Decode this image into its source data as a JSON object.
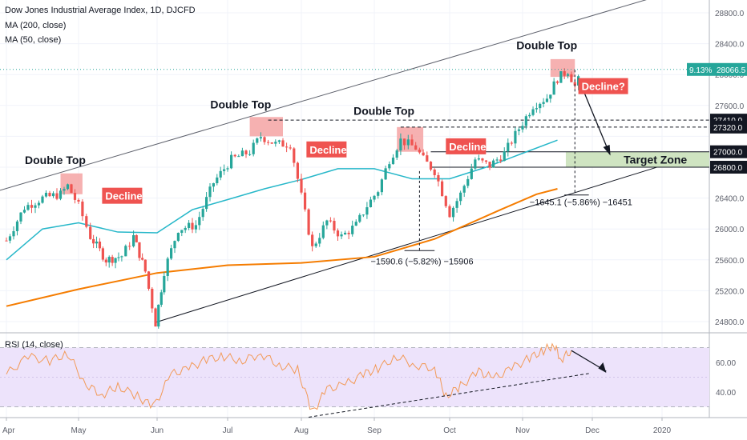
{
  "header": {
    "title": "Dow Jones Industrial Average Index, 1D, DJCFD",
    "ma200": "MA (200, close)",
    "ma50": "MA (50, close)",
    "rsi": "RSI (14, close)"
  },
  "colors": {
    "candle_up": "#26a69a",
    "candle_down": "#ef5350",
    "ma50": "#26b7c9",
    "ma200": "#f57c00",
    "rsi_line": "#f29a58",
    "rsi_band": "#ede3fb",
    "badge": "#ef5350",
    "target_zone": "#cfe4c1",
    "top_zone": "#f4a3a3"
  },
  "chart_data": [
    {
      "type": "candlestick",
      "title": "Dow Jones Industrial Average Index, 1D, DJCFD",
      "x_tick_labels": [
        "Apr",
        "May",
        "Jun",
        "Jul",
        "Aug",
        "Sep",
        "Oct",
        "Nov",
        "Dec",
        "2020"
      ],
      "y_tick_labels": [
        "24800.0",
        "25200.0",
        "25600.0",
        "26000.0",
        "26400.0",
        "27600.0",
        "28000.0",
        "28400.0",
        "28800.0"
      ],
      "ylim": [
        24600,
        29000
      ],
      "series": [
        {
          "name": "MA (200, close)",
          "x_months": [
            0,
            1,
            2,
            3,
            4,
            5,
            5.8,
            6.7,
            7.2,
            7.5
          ],
          "values": [
            25000,
            25220,
            25430,
            25530,
            25560,
            25640,
            25870,
            26250,
            26450,
            26520
          ]
        },
        {
          "name": "MA (50, close)",
          "x_months": [
            0,
            0.5,
            1,
            1.5,
            2,
            2.5,
            3,
            3.5,
            4,
            4.5,
            5,
            5.5,
            6,
            6.5,
            7,
            7.5
          ],
          "values": [
            25600,
            26000,
            26080,
            25960,
            25950,
            26250,
            26380,
            26520,
            26640,
            26780,
            26780,
            26650,
            26650,
            26800,
            26980,
            27150
          ]
        }
      ],
      "price_points": [
        {
          "x": 0.0,
          "y": 25850
        },
        {
          "x": 0.25,
          "y": 26280
        },
        {
          "x": 0.5,
          "y": 26400
        },
        {
          "x": 0.75,
          "y": 26450
        },
        {
          "x": 0.85,
          "y": 26560
        },
        {
          "x": 1.0,
          "y": 26300
        },
        {
          "x": 1.15,
          "y": 25900
        },
        {
          "x": 1.35,
          "y": 25600
        },
        {
          "x": 1.55,
          "y": 25650
        },
        {
          "x": 1.7,
          "y": 25900
        },
        {
          "x": 1.85,
          "y": 25450
        },
        {
          "x": 1.98,
          "y": 24780
        },
        {
          "x": 2.1,
          "y": 25450
        },
        {
          "x": 2.3,
          "y": 26000
        },
        {
          "x": 2.55,
          "y": 26050
        },
        {
          "x": 2.8,
          "y": 26600
        },
        {
          "x": 3.05,
          "y": 26900
        },
        {
          "x": 3.3,
          "y": 27000
        },
        {
          "x": 3.45,
          "y": 27200
        },
        {
          "x": 3.65,
          "y": 27100
        },
        {
          "x": 3.85,
          "y": 27100
        },
        {
          "x": 4.05,
          "y": 26200
        },
        {
          "x": 4.15,
          "y": 25750
        },
        {
          "x": 4.35,
          "y": 26100
        },
        {
          "x": 4.55,
          "y": 25900
        },
        {
          "x": 4.75,
          "y": 26050
        },
        {
          "x": 4.9,
          "y": 26300
        },
        {
          "x": 5.05,
          "y": 26500
        },
        {
          "x": 5.2,
          "y": 26900
        },
        {
          "x": 5.35,
          "y": 27150
        },
        {
          "x": 5.55,
          "y": 27050
        },
        {
          "x": 5.65,
          "y": 26900
        },
        {
          "x": 5.8,
          "y": 26750
        },
        {
          "x": 6.0,
          "y": 26200
        },
        {
          "x": 6.15,
          "y": 26450
        },
        {
          "x": 6.35,
          "y": 26900
        },
        {
          "x": 6.55,
          "y": 26820
        },
        {
          "x": 6.75,
          "y": 26980
        },
        {
          "x": 6.95,
          "y": 27300
        },
        {
          "x": 7.15,
          "y": 27600
        },
        {
          "x": 7.35,
          "y": 27700
        },
        {
          "x": 7.5,
          "y": 27950
        },
        {
          "x": 7.65,
          "y": 28050
        },
        {
          "x": 7.75,
          "y": 27850
        },
        {
          "x": 7.85,
          "y": 28000
        }
      ],
      "annotations": {
        "double_top": "Double Top",
        "decline": "Decline",
        "decline_q": "Decline?",
        "target_zone": "Target Zone",
        "measure_left": "−1590.6 (−5.82%) −15906",
        "measure_right": "−1645.1 (−5.86%) −16451"
      },
      "price_tags": {
        "current_pct": "9.13%",
        "current": "28066.5",
        "level_27410": "27410.0",
        "level_27320": "27320.0",
        "level_27000": "27000.0",
        "level_26800": "26800.0"
      },
      "levels": [
        27410,
        27320,
        27000,
        26800
      ],
      "target_zone": [
        26800,
        27000
      ],
      "double_top_zones": [
        {
          "x_months": [
            0.75,
            1.05
          ],
          "y": [
            26450,
            26720
          ]
        },
        {
          "x_months": [
            3.3,
            3.75
          ],
          "y": [
            27200,
            27450
          ]
        },
        {
          "x_months": [
            5.3,
            5.65
          ],
          "y": [
            27000,
            27320
          ]
        },
        {
          "x_months": [
            7.4,
            7.75
          ],
          "y": [
            27970,
            28200
          ]
        }
      ]
    },
    {
      "type": "line",
      "title": "RSI (14, close)",
      "y_tick_labels": [
        "60.00",
        "40.00"
      ],
      "ylim": [
        20,
        82
      ],
      "band": [
        30,
        70
      ],
      "values_by_month": [
        {
          "x": 0.0,
          "y": 52
        },
        {
          "x": 0.3,
          "y": 64
        },
        {
          "x": 0.6,
          "y": 61
        },
        {
          "x": 0.85,
          "y": 66
        },
        {
          "x": 1.1,
          "y": 45
        },
        {
          "x": 1.3,
          "y": 38
        },
        {
          "x": 1.5,
          "y": 44
        },
        {
          "x": 1.75,
          "y": 37
        },
        {
          "x": 1.95,
          "y": 30
        },
        {
          "x": 2.2,
          "y": 52
        },
        {
          "x": 2.45,
          "y": 56
        },
        {
          "x": 2.7,
          "y": 62
        },
        {
          "x": 2.95,
          "y": 64
        },
        {
          "x": 3.2,
          "y": 61
        },
        {
          "x": 3.45,
          "y": 66
        },
        {
          "x": 3.7,
          "y": 58
        },
        {
          "x": 3.95,
          "y": 55
        },
        {
          "x": 4.15,
          "y": 26
        },
        {
          "x": 4.35,
          "y": 42
        },
        {
          "x": 4.6,
          "y": 45
        },
        {
          "x": 4.85,
          "y": 52
        },
        {
          "x": 5.05,
          "y": 56
        },
        {
          "x": 5.3,
          "y": 64
        },
        {
          "x": 5.55,
          "y": 58
        },
        {
          "x": 5.8,
          "y": 56
        },
        {
          "x": 5.95,
          "y": 37
        },
        {
          "x": 6.15,
          "y": 44
        },
        {
          "x": 6.4,
          "y": 54
        },
        {
          "x": 6.6,
          "y": 49
        },
        {
          "x": 6.85,
          "y": 56
        },
        {
          "x": 7.1,
          "y": 63
        },
        {
          "x": 7.3,
          "y": 68
        },
        {
          "x": 7.45,
          "y": 72
        },
        {
          "x": 7.55,
          "y": 62
        },
        {
          "x": 7.7,
          "y": 68
        }
      ]
    }
  ]
}
